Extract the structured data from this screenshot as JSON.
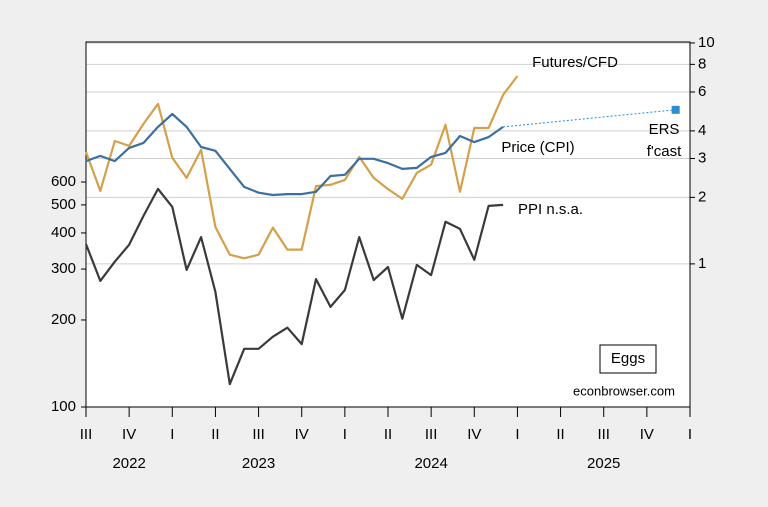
{
  "chart_data": {
    "type": "line",
    "annotations": [
      {
        "text": "Futures/CFD",
        "color": "#d4a04a"
      },
      {
        "text": "Price (CPI)",
        "color": "#3c6fa0"
      },
      {
        "text": "PPI n.s.a.",
        "color": "#222222"
      },
      {
        "text": "ERS",
        "color": "#2a8ed0"
      },
      {
        "text": "f'cast",
        "color": "#2a8ed0"
      },
      {
        "text": "econbrowser.com",
        "color": "#000000"
      }
    ],
    "label_box": "Eggs",
    "x": [
      2022.5,
      2022.583,
      2022.667,
      2022.75,
      2022.833,
      2022.917,
      2023,
      2023.083,
      2023.167,
      2023.25,
      2023.333,
      2023.417,
      2023.5,
      2023.583,
      2023.667,
      2023.75,
      2023.833,
      2023.917,
      2024,
      2024.083,
      2024.167,
      2024.25,
      2024.333,
      2024.417,
      2024.5,
      2024.583,
      2024.667,
      2024.75,
      2024.833,
      2024.917,
      2025
    ],
    "series": [
      {
        "name": "Futures/CFD",
        "color": "#d4a04a",
        "axis": "y2",
        "values": [
          3.21,
          2.14,
          3.6,
          3.42,
          4.3,
          5.3,
          3.02,
          2.45,
          3.28,
          1.47,
          1.1,
          1.06,
          1.1,
          1.46,
          1.16,
          1.16,
          2.25,
          2.28,
          2.4,
          3.05,
          2.45,
          2.18,
          1.97,
          2.58,
          2.81,
          4.26,
          2.12,
          4.12,
          4.12,
          5.82,
          7.09
        ]
      },
      {
        "name": "Price (CPI)",
        "color": "#3c6fa0",
        "axis": "y2",
        "values": [
          2.92,
          3.08,
          2.92,
          3.35,
          3.53,
          4.17,
          4.77,
          4.17,
          3.38,
          3.25,
          2.69,
          2.23,
          2.1,
          2.05,
          2.07,
          2.07,
          2.12,
          2.5,
          2.53,
          2.99,
          2.99,
          2.86,
          2.69,
          2.72,
          3.05,
          3.18,
          3.79,
          3.56,
          3.75,
          4.17,
          null
        ]
      },
      {
        "name": "PPI n.s.a.",
        "color": "#3a3a3a",
        "axis": "y",
        "values": [
          366,
          273,
          318,
          364,
          458,
          568,
          492,
          298,
          387,
          250,
          120,
          159,
          159,
          175,
          188,
          165,
          277,
          222,
          254,
          387,
          275,
          305,
          202,
          310,
          286,
          437,
          413,
          323,
          496,
          500,
          null
        ]
      },
      {
        "name": "ERS f'cast",
        "color": "#2a8ed0",
        "axis": "y2",
        "dotted": true,
        "marker": "square",
        "x": [
          2024.917,
          2025.917
        ],
        "values": [
          4.17,
          4.98
        ]
      }
    ],
    "xlim": [
      2022.5,
      2026.0
    ],
    "xticks": [
      {
        "value": 2022.5,
        "label": "III"
      },
      {
        "value": 2022.75,
        "label": "IV"
      },
      {
        "value": 2023.0,
        "label": "I"
      },
      {
        "value": 2023.25,
        "label": "II"
      },
      {
        "value": 2023.5,
        "label": "III"
      },
      {
        "value": 2023.75,
        "label": "IV"
      },
      {
        "value": 2024.0,
        "label": "I"
      },
      {
        "value": 2024.25,
        "label": "II"
      },
      {
        "value": 2024.5,
        "label": "III"
      },
      {
        "value": 2024.75,
        "label": "IV"
      },
      {
        "value": 2025.0,
        "label": "I"
      },
      {
        "value": 2025.25,
        "label": "II"
      },
      {
        "value": 2025.5,
        "label": "III"
      },
      {
        "value": 2025.75,
        "label": "IV"
      },
      {
        "value": 2026.0,
        "label": "I"
      }
    ],
    "years": [
      2022,
      2023,
      2024,
      2025
    ],
    "ylim": [
      100,
      1830
    ],
    "yticks": [
      100,
      200,
      300,
      400,
      500,
      600
    ],
    "ylog": true,
    "y2lim": [
      0.225,
      10.1
    ],
    "y2ticks": [
      1,
      2,
      3,
      4,
      6,
      8,
      10
    ],
    "y2log": true,
    "grid": true
  }
}
